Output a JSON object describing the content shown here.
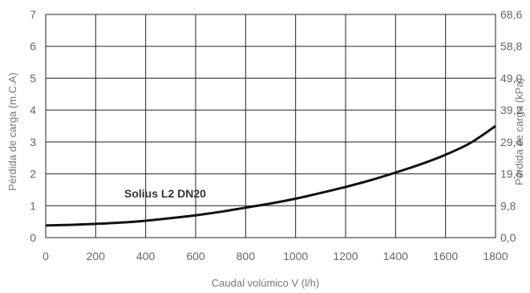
{
  "chart_data": {
    "type": "line",
    "title": "",
    "xlabel": "Caudal volúmico V (l/h)",
    "ylabel": "Pérdida de carga (m.C.A)",
    "y2label": "Pérdida de carga (kPa)",
    "xlim": [
      0,
      1800
    ],
    "ylim": [
      0,
      7
    ],
    "grid": true,
    "x_ticks": [
      "0",
      "200",
      "400",
      "600",
      "800",
      "1000",
      "1200",
      "1400",
      "1600",
      "1800"
    ],
    "y_ticks": [
      "0",
      "1",
      "2",
      "3",
      "4",
      "5",
      "6",
      "7"
    ],
    "y2_ticks": [
      "0,0",
      "9,8",
      "19,6",
      "29,4",
      "39,2",
      "49,0",
      "58,8",
      "68,6"
    ],
    "series": [
      {
        "name": "Solius L2 DN20",
        "x": [
          0,
          100,
          200,
          300,
          400,
          500,
          600,
          700,
          800,
          900,
          1000,
          1100,
          1200,
          1300,
          1400,
          1500,
          1600,
          1700,
          1800
        ],
        "values": [
          0.38,
          0.4,
          0.43,
          0.47,
          0.53,
          0.61,
          0.7,
          0.81,
          0.94,
          1.07,
          1.22,
          1.4,
          1.59,
          1.8,
          2.04,
          2.3,
          2.6,
          2.97,
          3.5
        ]
      }
    ]
  }
}
